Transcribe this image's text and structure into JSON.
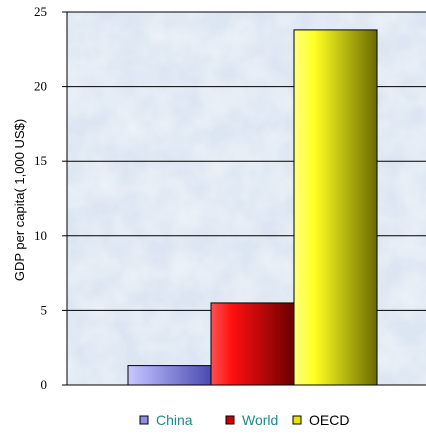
{
  "chart_data": {
    "type": "bar",
    "categories": [
      "China",
      "World",
      "OECD"
    ],
    "values": [
      1.3,
      5.5,
      23.8
    ],
    "title": "",
    "xlabel": "",
    "ylabel": "GDP per capita(  1,000 US$)",
    "ylim": [
      0,
      25
    ],
    "yticks": [
      "0",
      "5",
      "10",
      "15",
      "20",
      "25"
    ],
    "grid": true,
    "legend_position": "bottom",
    "legend": [
      {
        "label": "China",
        "text_color": "#1a8a8a",
        "swatch_color": "#8f8fe6"
      },
      {
        "label": "World",
        "text_color": "#1a8a8a",
        "swatch_color": "#cc0000"
      },
      {
        "label": "OECD",
        "text_color": "#000000",
        "swatch_color": "#e6e600"
      }
    ],
    "colors": {
      "China": {
        "light": "#a8a8f0",
        "dark": "#4a4ab0",
        "top": "#c8c8ff"
      },
      "World": {
        "light": "#ff1010",
        "dark": "#6a0000",
        "top": "#ff5050"
      },
      "OECD": {
        "light": "#ffff20",
        "dark": "#6a6a00",
        "top": "#ffff80"
      }
    },
    "plot_background": "#dce6f2"
  }
}
